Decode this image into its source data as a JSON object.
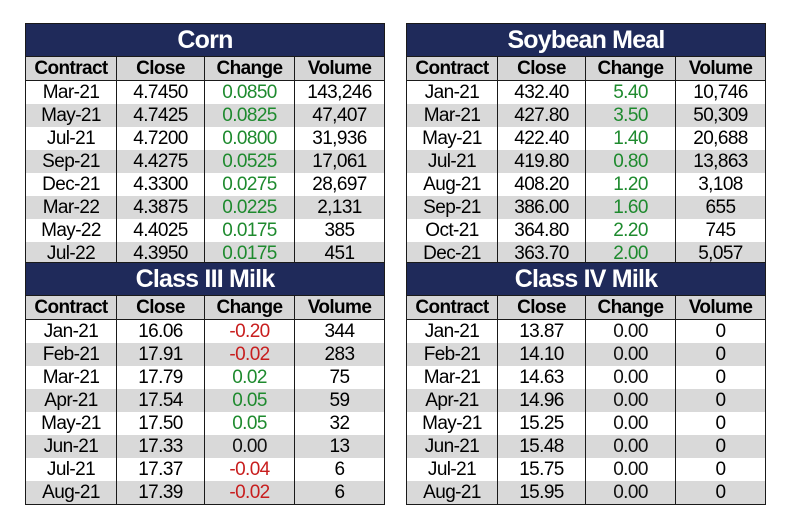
{
  "colors": {
    "header_bg": "#1f2a5a",
    "positive": "#1e8a2e",
    "negative": "#c81e1e"
  },
  "tables": [
    {
      "title": "Corn",
      "headers": [
        "Contract",
        "Close",
        "Change",
        "Volume"
      ],
      "rows": [
        [
          "Mar-21",
          "4.7450",
          "0.0850",
          "143,246"
        ],
        [
          "May-21",
          "4.7425",
          "0.0825",
          "47,407"
        ],
        [
          "Jul-21",
          "4.7200",
          "0.0800",
          "31,936"
        ],
        [
          "Sep-21",
          "4.4275",
          "0.0525",
          "17,061"
        ],
        [
          "Dec-21",
          "4.3300",
          "0.0275",
          "28,697"
        ],
        [
          "Mar-22",
          "4.3875",
          "0.0225",
          "2,131"
        ],
        [
          "May-22",
          "4.4025",
          "0.0175",
          "385"
        ],
        [
          "Jul-22",
          "4.3950",
          "0.0175",
          "451"
        ]
      ]
    },
    {
      "title": "Soybean Meal",
      "headers": [
        "Contract",
        "Close",
        "Change",
        "Volume"
      ],
      "rows": [
        [
          "Jan-21",
          "432.40",
          "5.40",
          "10,746"
        ],
        [
          "Mar-21",
          "427.80",
          "3.50",
          "50,309"
        ],
        [
          "May-21",
          "422.40",
          "1.40",
          "20,688"
        ],
        [
          "Jul-21",
          "419.80",
          "0.80",
          "13,863"
        ],
        [
          "Aug-21",
          "408.20",
          "1.20",
          "3,108"
        ],
        [
          "Sep-21",
          "386.00",
          "1.60",
          "655"
        ],
        [
          "Oct-21",
          "364.80",
          "2.20",
          "745"
        ],
        [
          "Dec-21",
          "363.70",
          "2.00",
          "5,057"
        ]
      ]
    },
    {
      "title": "Class III Milk",
      "headers": [
        "Contract",
        "Close",
        "Change",
        "Volume"
      ],
      "rows": [
        [
          "Jan-21",
          "16.06",
          "-0.20",
          "344"
        ],
        [
          "Feb-21",
          "17.91",
          "-0.02",
          "283"
        ],
        [
          "Mar-21",
          "17.79",
          "0.02",
          "75"
        ],
        [
          "Apr-21",
          "17.54",
          "0.05",
          "59"
        ],
        [
          "May-21",
          "17.50",
          "0.05",
          "32"
        ],
        [
          "Jun-21",
          "17.33",
          "0.00",
          "13"
        ],
        [
          "Jul-21",
          "17.37",
          "-0.04",
          "6"
        ],
        [
          "Aug-21",
          "17.39",
          "-0.02",
          "6"
        ]
      ]
    },
    {
      "title": "Class IV Milk",
      "headers": [
        "Contract",
        "Close",
        "Change",
        "Volume"
      ],
      "rows": [
        [
          "Jan-21",
          "13.87",
          "0.00",
          "0"
        ],
        [
          "Feb-21",
          "14.10",
          "0.00",
          "0"
        ],
        [
          "Mar-21",
          "14.63",
          "0.00",
          "0"
        ],
        [
          "Apr-21",
          "14.96",
          "0.00",
          "0"
        ],
        [
          "May-21",
          "15.25",
          "0.00",
          "0"
        ],
        [
          "Jun-21",
          "15.48",
          "0.00",
          "0"
        ],
        [
          "Jul-21",
          "15.75",
          "0.00",
          "0"
        ],
        [
          "Aug-21",
          "15.95",
          "0.00",
          "0"
        ]
      ]
    }
  ]
}
